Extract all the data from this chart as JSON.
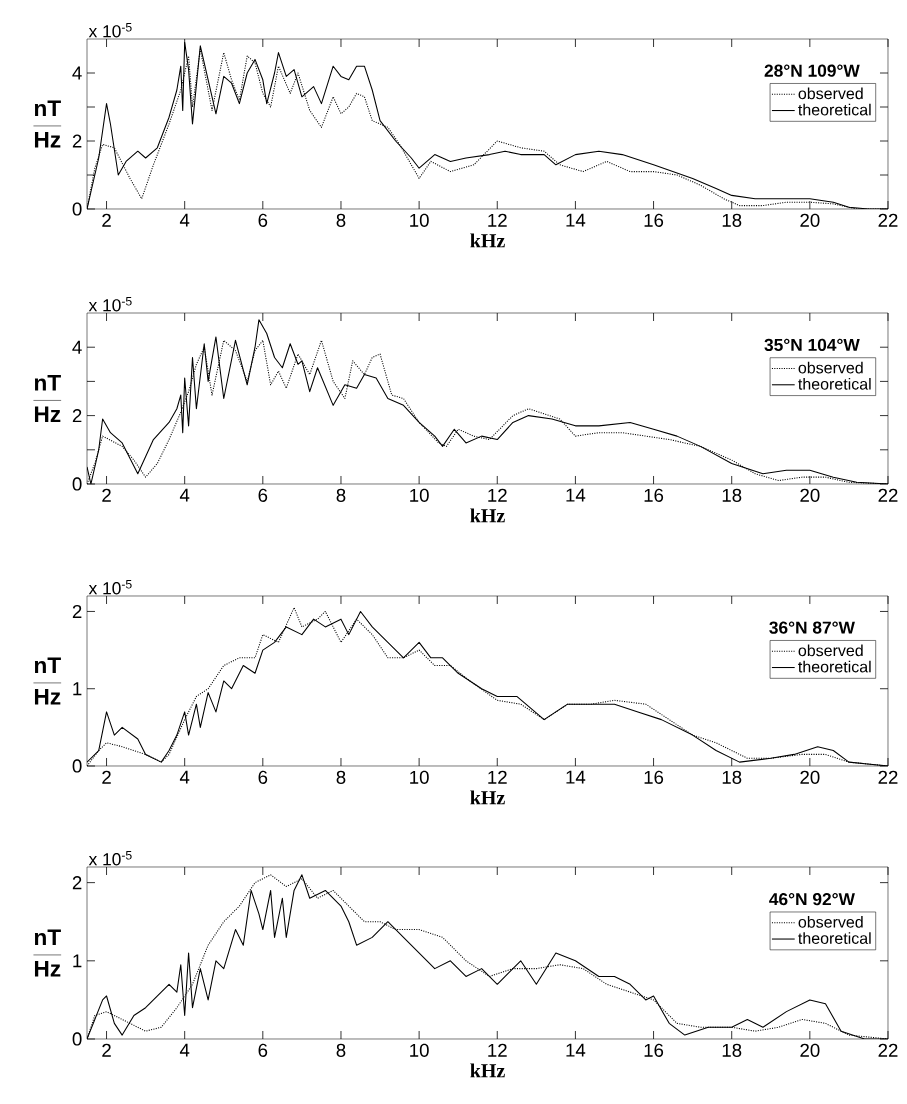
{
  "chart_data": [
    {
      "type": "line",
      "legend_title": "28°N 109°W",
      "xlabel": "kHz",
      "ylabel": "\\frac{\\mathbf{nT}}{\\mathbf{Hz}}",
      "annotations": [
        "x 10$^{-5}$"
      ],
      "legend": "top right",
      "xlim": [
        1.5,
        22
      ],
      "ylim": [
        0,
        5
      ],
      "xticks": [
        2,
        4,
        6,
        8,
        10,
        12,
        14,
        16,
        18,
        20,
        22
      ],
      "yticks": [
        0,
        2,
        4
      ],
      "series": [
        {
          "name": "observed",
          "color": "#000000",
          "line_style": "dotted",
          "x": [
            1.5,
            1.7,
            1.9,
            2.2,
            2.6,
            2.9,
            3.2,
            3.6,
            3.9,
            4.1,
            4.2,
            4.4,
            4.7,
            5.0,
            5.2,
            5.4,
            5.6,
            5.8,
            6.0,
            6.2,
            6.4,
            6.7,
            6.9,
            7.2,
            7.5,
            7.8,
            8.0,
            8.2,
            8.4,
            8.6,
            8.8,
            9.2,
            9.5,
            10.0,
            10.3,
            10.8,
            11.4,
            12.0,
            12.6,
            13.2,
            13.6,
            14.2,
            14.8,
            15.4,
            16.0,
            16.6,
            17.2,
            17.8,
            18.2,
            18.8,
            19.4,
            20.0,
            20.6,
            21.2,
            22
          ],
          "values": [
            0,
            1.2,
            1.9,
            1.8,
            0.9,
            0.3,
            1.3,
            2.5,
            3.5,
            4.5,
            3.0,
            4.7,
            2.9,
            4.6,
            3.8,
            3.2,
            4.5,
            4.3,
            3.4,
            3.0,
            4.2,
            3.4,
            4.0,
            2.9,
            2.4,
            3.3,
            2.8,
            3.0,
            3.4,
            3.3,
            2.6,
            2.4,
            1.9,
            0.9,
            1.4,
            1.1,
            1.3,
            2.0,
            1.8,
            1.7,
            1.3,
            1.1,
            1.4,
            1.1,
            1.1,
            1.0,
            0.7,
            0.3,
            0.1,
            0.1,
            0.2,
            0.2,
            0.15,
            0,
            0
          ]
        },
        {
          "name": "theoretical",
          "color": "#000000",
          "line_style": "solid",
          "x": [
            1.5,
            1.6,
            1.8,
            2.0,
            2.1,
            2.3,
            2.5,
            2.8,
            3.0,
            3.3,
            3.6,
            3.8,
            3.9,
            3.95,
            4.0,
            4.1,
            4.2,
            4.4,
            4.6,
            4.8,
            5.0,
            5.2,
            5.4,
            5.6,
            5.8,
            6.0,
            6.1,
            6.3,
            6.4,
            6.6,
            6.8,
            7.0,
            7.3,
            7.5,
            7.8,
            8.0,
            8.2,
            8.4,
            8.6,
            8.8,
            9.0,
            9.4,
            9.8,
            10.0,
            10.4,
            10.8,
            11.2,
            11.8,
            12.2,
            12.6,
            13.2,
            13.5,
            14.0,
            14.6,
            15.2,
            16.0,
            17.0,
            17.6,
            18.0,
            18.6,
            19.4,
            20.0,
            20.6,
            21.0,
            21.5,
            22
          ],
          "values": [
            0,
            0.5,
            1.5,
            3.1,
            2.5,
            1.0,
            1.4,
            1.7,
            1.5,
            1.8,
            2.7,
            3.5,
            4.2,
            2.9,
            4.9,
            4.1,
            2.5,
            4.8,
            3.8,
            2.8,
            3.9,
            3.7,
            3.1,
            4.0,
            4.4,
            3.8,
            3.1,
            4.0,
            4.6,
            3.9,
            4.1,
            3.3,
            3.6,
            3.1,
            4.2,
            3.9,
            3.8,
            4.2,
            4.2,
            3.5,
            2.6,
            2.0,
            1.5,
            1.2,
            1.6,
            1.4,
            1.5,
            1.6,
            1.7,
            1.6,
            1.6,
            1.3,
            1.6,
            1.7,
            1.6,
            1.3,
            0.9,
            0.6,
            0.4,
            0.3,
            0.3,
            0.3,
            0.2,
            0.05,
            0,
            0
          ]
        }
      ]
    },
    {
      "type": "line",
      "legend_title": "35°N 104°W",
      "xlabel": "kHz",
      "ylabel": "\\frac{\\mathbf{nT}}{\\mathbf{Hz}}",
      "annotations": [
        "x 10$^{-5}$"
      ],
      "legend": "top right",
      "xlim": [
        1.5,
        22
      ],
      "ylim": [
        0,
        5
      ],
      "xticks": [
        2,
        4,
        6,
        8,
        10,
        12,
        14,
        16,
        18,
        20,
        22
      ],
      "yticks": [
        0,
        2,
        4
      ],
      "series": [
        {
          "name": "observed",
          "color": "#000000",
          "line_style": "dotted",
          "x": [
            1.5,
            1.7,
            1.9,
            2.4,
            2.7,
            3.0,
            3.3,
            3.6,
            3.9,
            4.1,
            4.3,
            4.5,
            4.7,
            5.0,
            5.3,
            5.6,
            5.8,
            6.0,
            6.2,
            6.4,
            6.6,
            6.9,
            7.2,
            7.5,
            7.8,
            8.1,
            8.3,
            8.6,
            8.8,
            9.0,
            9.3,
            9.6,
            10.0,
            10.5,
            10.7,
            11.0,
            11.4,
            11.8,
            12.4,
            12.8,
            13.6,
            14.0,
            14.6,
            15.2,
            15.8,
            16.4,
            17.2,
            18.0,
            18.6,
            19.2,
            19.8,
            20.4,
            21.0,
            22
          ],
          "values": [
            0,
            0.6,
            1.4,
            1.1,
            0.7,
            0.2,
            0.6,
            1.3,
            2.1,
            2.7,
            3.5,
            4.0,
            2.6,
            4.2,
            3.9,
            3.0,
            3.9,
            4.2,
            2.9,
            3.3,
            2.8,
            3.8,
            3.2,
            4.2,
            3.0,
            2.5,
            3.6,
            3.2,
            3.7,
            3.8,
            2.6,
            2.5,
            1.8,
            1.2,
            1.1,
            1.6,
            1.4,
            1.3,
            2.0,
            2.2,
            1.9,
            1.4,
            1.5,
            1.5,
            1.4,
            1.3,
            1.1,
            0.7,
            0.3,
            0.1,
            0.2,
            0.2,
            0.05,
            0
          ]
        },
        {
          "name": "theoretical",
          "color": "#000000",
          "line_style": "solid",
          "x": [
            1.5,
            1.6,
            1.8,
            1.9,
            2.1,
            2.4,
            2.8,
            3.2,
            3.6,
            3.8,
            3.9,
            3.95,
            4.0,
            4.1,
            4.2,
            4.3,
            4.5,
            4.6,
            4.8,
            5.0,
            5.3,
            5.6,
            5.8,
            5.9,
            6.1,
            6.3,
            6.5,
            6.7,
            6.9,
            7.0,
            7.2,
            7.4,
            7.8,
            8.1,
            8.4,
            8.6,
            8.9,
            9.2,
            9.6,
            10.0,
            10.4,
            10.6,
            10.9,
            11.2,
            11.6,
            12.0,
            12.4,
            12.8,
            13.4,
            14.0,
            14.6,
            15.4,
            16.0,
            16.6,
            17.2,
            18.0,
            18.8,
            19.4,
            20.0,
            20.6,
            21.2,
            22
          ],
          "values": [
            0.5,
            0,
            1.0,
            1.9,
            1.5,
            1.2,
            0.3,
            1.3,
            1.8,
            2.2,
            2.6,
            1.5,
            3.1,
            1.7,
            3.7,
            2.2,
            4.1,
            3.0,
            4.3,
            2.5,
            4.2,
            2.9,
            4.0,
            4.8,
            4.4,
            3.7,
            3.4,
            4.1,
            3.5,
            3.6,
            2.7,
            3.4,
            2.3,
            2.9,
            2.8,
            3.2,
            3.1,
            2.5,
            2.3,
            1.8,
            1.4,
            1.1,
            1.6,
            1.2,
            1.4,
            1.3,
            1.8,
            2.0,
            1.9,
            1.7,
            1.7,
            1.8,
            1.6,
            1.4,
            1.1,
            0.6,
            0.3,
            0.4,
            0.4,
            0.2,
            0.05,
            0
          ]
        }
      ]
    },
    {
      "type": "line",
      "legend_title": "36°N 87°W",
      "xlabel": "kHz",
      "ylabel": "\\frac{\\mathbf{nT}}{\\mathbf{Hz}}",
      "annotations": [
        "x 10$^{-5}$"
      ],
      "legend": "top right",
      "xlim": [
        1.5,
        22
      ],
      "ylim": [
        0,
        2.2
      ],
      "xticks": [
        2,
        4,
        6,
        8,
        10,
        12,
        14,
        16,
        18,
        20,
        22
      ],
      "yticks": [
        0,
        1,
        2
      ],
      "series": [
        {
          "name": "observed",
          "color": "#000000",
          "line_style": "dotted",
          "x": [
            1.5,
            1.8,
            2.0,
            2.4,
            3.0,
            3.4,
            3.6,
            4.0,
            4.3,
            4.6,
            5.0,
            5.4,
            5.8,
            6.0,
            6.4,
            6.8,
            7.0,
            7.4,
            7.6,
            8.0,
            8.4,
            8.8,
            9.2,
            9.6,
            10.0,
            10.4,
            10.8,
            11.3,
            12.0,
            12.6,
            13.2,
            13.8,
            14.4,
            15.0,
            15.8,
            16.4,
            17.0,
            17.6,
            18.4,
            19.0,
            19.8,
            20.4,
            21.0,
            22
          ],
          "values": [
            0,
            0.2,
            0.3,
            0.25,
            0.15,
            0.05,
            0.15,
            0.6,
            0.9,
            1.0,
            1.3,
            1.4,
            1.4,
            1.7,
            1.6,
            2.05,
            1.8,
            1.9,
            2.0,
            1.6,
            1.9,
            1.7,
            1.4,
            1.4,
            1.5,
            1.3,
            1.3,
            1.1,
            0.85,
            0.8,
            0.6,
            0.8,
            0.8,
            0.85,
            0.8,
            0.6,
            0.4,
            0.3,
            0.1,
            0.1,
            0.15,
            0.15,
            0.05,
            0
          ]
        },
        {
          "name": "theoretical",
          "color": "#000000",
          "line_style": "solid",
          "x": [
            1.5,
            1.8,
            2.0,
            2.2,
            2.4,
            2.8,
            3.0,
            3.4,
            3.6,
            3.8,
            4.0,
            4.1,
            4.3,
            4.4,
            4.6,
            4.8,
            5.0,
            5.2,
            5.5,
            5.8,
            6.0,
            6.3,
            6.6,
            7.0,
            7.3,
            7.6,
            8.0,
            8.2,
            8.5,
            8.8,
            9.2,
            9.6,
            10.0,
            10.3,
            10.6,
            11.0,
            11.6,
            12.0,
            12.5,
            13.2,
            13.8,
            14.2,
            15.0,
            15.6,
            16.2,
            17.0,
            17.6,
            18.2,
            19.0,
            19.6,
            20.2,
            20.6,
            21.0,
            22
          ],
          "values": [
            0.05,
            0.2,
            0.7,
            0.4,
            0.5,
            0.35,
            0.15,
            0.05,
            0.2,
            0.4,
            0.7,
            0.4,
            0.8,
            0.5,
            0.95,
            0.7,
            1.1,
            1.0,
            1.3,
            1.2,
            1.5,
            1.6,
            1.8,
            1.7,
            1.9,
            1.8,
            1.9,
            1.7,
            2.0,
            1.8,
            1.6,
            1.4,
            1.6,
            1.4,
            1.4,
            1.2,
            1.0,
            0.9,
            0.9,
            0.6,
            0.8,
            0.8,
            0.8,
            0.7,
            0.6,
            0.4,
            0.2,
            0.05,
            0.1,
            0.15,
            0.25,
            0.2,
            0.05,
            0
          ]
        }
      ]
    },
    {
      "type": "line",
      "legend_title": "46°N 92°W",
      "xlabel": "kHz",
      "ylabel": "\\frac{\\mathbf{nT}}{\\mathbf{Hz}}",
      "annotations": [
        "x 10$^{-5}$"
      ],
      "legend": "top right",
      "xlim": [
        1.5,
        22
      ],
      "ylim": [
        0,
        2.2
      ],
      "xticks": [
        2,
        4,
        6,
        8,
        10,
        12,
        14,
        16,
        18,
        20,
        22
      ],
      "yticks": [
        0,
        1,
        2
      ],
      "series": [
        {
          "name": "observed",
          "color": "#000000",
          "line_style": "dotted",
          "x": [
            1.5,
            1.7,
            2.0,
            2.4,
            3.0,
            3.4,
            3.8,
            4.2,
            4.6,
            5.0,
            5.4,
            5.8,
            6.2,
            6.6,
            7.0,
            7.4,
            7.8,
            8.2,
            8.6,
            9.0,
            9.4,
            10.0,
            10.6,
            11.2,
            11.8,
            12.4,
            13.0,
            13.6,
            14.2,
            14.8,
            15.4,
            16.0,
            16.6,
            17.2,
            18.0,
            18.6,
            19.2,
            19.8,
            20.4,
            21.0,
            22
          ],
          "values": [
            0,
            0.3,
            0.35,
            0.25,
            0.1,
            0.15,
            0.4,
            0.7,
            1.2,
            1.5,
            1.7,
            2.0,
            2.1,
            1.95,
            2.05,
            1.8,
            1.9,
            1.7,
            1.5,
            1.5,
            1.4,
            1.4,
            1.3,
            1.0,
            0.8,
            0.9,
            0.9,
            0.95,
            0.9,
            0.7,
            0.6,
            0.5,
            0.2,
            0.15,
            0.15,
            0.1,
            0.15,
            0.25,
            0.2,
            0.05,
            0
          ]
        },
        {
          "name": "theoretical",
          "color": "#000000",
          "line_style": "solid",
          "x": [
            1.5,
            1.7,
            1.9,
            2.0,
            2.2,
            2.4,
            2.7,
            3.0,
            3.4,
            3.6,
            3.8,
            3.9,
            4.0,
            4.1,
            4.2,
            4.4,
            4.6,
            4.8,
            5.0,
            5.3,
            5.5,
            5.7,
            5.9,
            6.0,
            6.2,
            6.3,
            6.5,
            6.6,
            6.8,
            7.0,
            7.2,
            7.6,
            8.0,
            8.2,
            8.4,
            8.8,
            9.2,
            9.6,
            10.0,
            10.4,
            10.8,
            11.2,
            11.6,
            12.0,
            12.6,
            13.0,
            13.5,
            14.0,
            14.6,
            15.0,
            15.4,
            15.8,
            16.0,
            16.4,
            16.8,
            17.4,
            18.0,
            18.4,
            18.8,
            19.4,
            20.0,
            20.4,
            20.8,
            21.4,
            22
          ],
          "values": [
            0,
            0.25,
            0.5,
            0.55,
            0.2,
            0.05,
            0.3,
            0.4,
            0.6,
            0.7,
            0.6,
            0.95,
            0.3,
            1.1,
            0.4,
            0.9,
            0.5,
            1.0,
            0.9,
            1.4,
            1.2,
            1.9,
            1.6,
            1.4,
            1.9,
            1.3,
            1.8,
            1.3,
            1.9,
            2.1,
            1.8,
            1.9,
            1.7,
            1.5,
            1.2,
            1.3,
            1.5,
            1.3,
            1.1,
            0.9,
            1.0,
            0.8,
            0.9,
            0.7,
            1.0,
            0.7,
            1.1,
            1.0,
            0.8,
            0.8,
            0.7,
            0.5,
            0.55,
            0.2,
            0.05,
            0.15,
            0.15,
            0.25,
            0.15,
            0.35,
            0.5,
            0.45,
            0.1,
            0,
            0
          ]
        }
      ]
    }
  ]
}
